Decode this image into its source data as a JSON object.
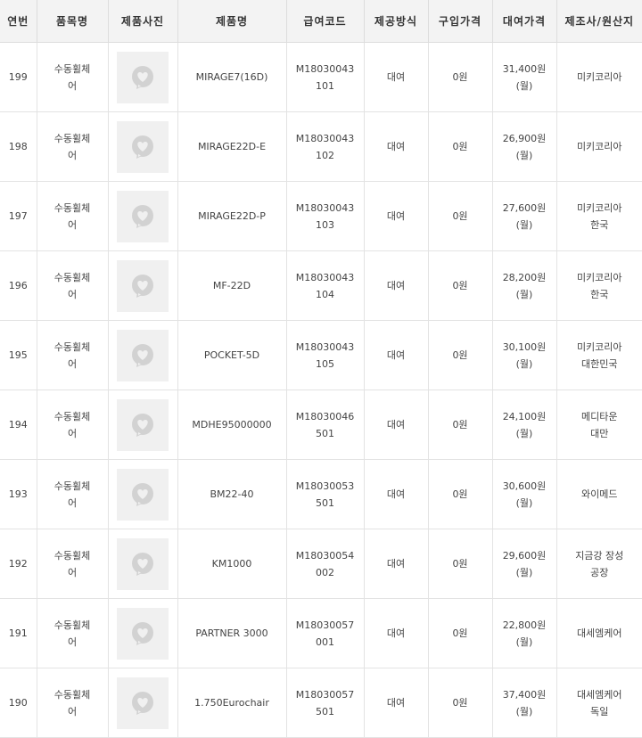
{
  "headers": [
    "연번",
    "품목명",
    "제품사진",
    "제품명",
    "급여코드",
    "제공방식",
    "구입가격",
    "대여가격",
    "제조사/원산지"
  ],
  "rows": [
    {
      "no": "199",
      "category": "수동휠체\n어",
      "name": "MIRAGE7(16D)",
      "code": "M18030043\n101",
      "method": "대여",
      "purchase": "0원",
      "rental": "31,400원\n(월)",
      "maker": "미키코리아"
    },
    {
      "no": "198",
      "category": "수동휠체\n어",
      "name": "MIRAGE22D-E",
      "code": "M18030043\n102",
      "method": "대여",
      "purchase": "0원",
      "rental": "26,900원\n(월)",
      "maker": "미키코리아"
    },
    {
      "no": "197",
      "category": "수동휠체\n어",
      "name": "MIRAGE22D-P",
      "code": "M18030043\n103",
      "method": "대여",
      "purchase": "0원",
      "rental": "27,600원\n(월)",
      "maker": "미키코리아\n한국"
    },
    {
      "no": "196",
      "category": "수동휠체\n어",
      "name": "MF-22D",
      "code": "M18030043\n104",
      "method": "대여",
      "purchase": "0원",
      "rental": "28,200원\n(월)",
      "maker": "미키코리아\n한국"
    },
    {
      "no": "195",
      "category": "수동휠체\n어",
      "name": "POCKET-5D",
      "code": "M18030043\n105",
      "method": "대여",
      "purchase": "0원",
      "rental": "30,100원\n(월)",
      "maker": "미키코리아\n대한민국"
    },
    {
      "no": "194",
      "category": "수동휠체\n어",
      "name": "MDHE95000000",
      "code": "M18030046\n501",
      "method": "대여",
      "purchase": "0원",
      "rental": "24,100원\n(월)",
      "maker": "메디타운\n대만"
    },
    {
      "no": "193",
      "category": "수동휠체\n어",
      "name": "BM22-40",
      "code": "M18030053\n501",
      "method": "대여",
      "purchase": "0원",
      "rental": "30,600원\n(월)",
      "maker": "와이메드"
    },
    {
      "no": "192",
      "category": "수동휠체\n어",
      "name": "KM1000",
      "code": "M18030054\n002",
      "method": "대여",
      "purchase": "0원",
      "rental": "29,600원\n(월)",
      "maker": "지금강 장성\n공장"
    },
    {
      "no": "191",
      "category": "수동휠체\n어",
      "name": "PARTNER 3000",
      "code": "M18030057\n001",
      "method": "대여",
      "purchase": "0원",
      "rental": "22,800원\n(월)",
      "maker": "대세엠케어"
    },
    {
      "no": "190",
      "category": "수동휠체\n어",
      "name": "1.750Eurochair",
      "code": "M18030057\n501",
      "method": "대여",
      "purchase": "0원",
      "rental": "37,400원\n(월)",
      "maker": "대세엠케어\n독일"
    }
  ],
  "icons": {
    "photo_placeholder": "heart-speech-bubble-icon"
  }
}
